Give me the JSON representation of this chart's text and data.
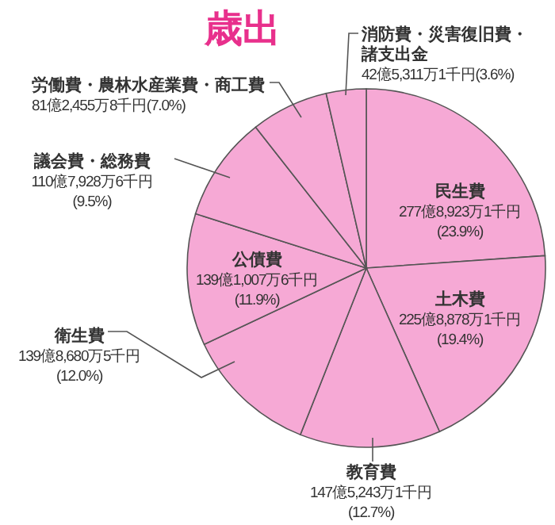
{
  "chart_data": {
    "type": "pie",
    "title": "歳出",
    "categories": [
      "民生費",
      "土木費",
      "教育費",
      "衛生費",
      "公債費",
      "議会費・総務費",
      "労働費・農林水産業費・商工費",
      "消防費・災害復旧費・諸支出金"
    ],
    "values": [
      23.9,
      19.4,
      12.7,
      12.0,
      11.9,
      9.5,
      7.0,
      3.6
    ],
    "colors": [
      "#f6a9d5",
      "#f6a9d5",
      "#f6a9d5",
      "#f6a9d5",
      "#f6a9d5",
      "#f6a9d5",
      "#f6a9d5",
      "#f6a9d5"
    ],
    "value_labels": [
      "277億8,923万1千円(23.9%)",
      "225億8,878万1千円(19.4%)",
      "147億5,243万1千円(12.7%)",
      "139億8,680万5千円(12.0%)",
      "139億1,007万6千円(11.9%)",
      "110億7,928万6千円(9.5%)",
      "81億2,455万8千円(7.0%)",
      "42億5,311万1千円(3.6%)"
    ]
  }
}
